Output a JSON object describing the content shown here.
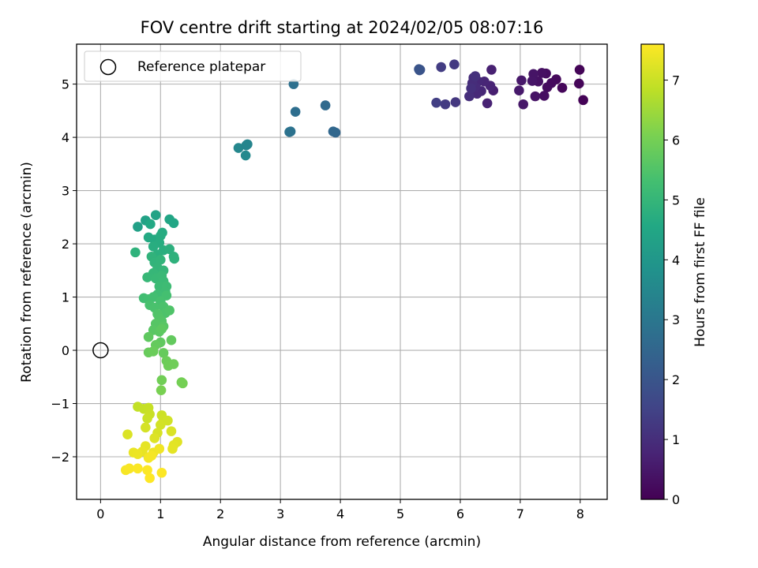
{
  "chart_data": {
    "type": "scatter",
    "title": "FOV centre drift starting at 2024/02/05 08:07:16",
    "xlabel": "Angular distance from reference (arcmin)",
    "ylabel": "Rotation from reference (arcmin)",
    "colorbar_label": "Hours from first FF file",
    "colormap": "viridis",
    "xlim": [
      -0.4,
      8.45
    ],
    "ylim": [
      -2.8,
      5.75
    ],
    "clim": [
      0,
      7.6
    ],
    "xticks": [
      0,
      1,
      2,
      3,
      4,
      5,
      6,
      7,
      8
    ],
    "yticks": [
      -2,
      -1,
      0,
      1,
      2,
      3,
      4,
      5
    ],
    "cticks": [
      0,
      1,
      2,
      3,
      4,
      5,
      6,
      7
    ],
    "grid": true,
    "legend": {
      "label": "Reference platepar",
      "placement": "top-left"
    },
    "reference_point": {
      "x": 0,
      "y": 0
    },
    "points": [
      {
        "x": 8.05,
        "y": 4.7,
        "c": 0.05
      },
      {
        "x": 7.99,
        "y": 5.27,
        "c": 0.08
      },
      {
        "x": 7.98,
        "y": 5.01,
        "c": 0.11
      },
      {
        "x": 7.7,
        "y": 4.93,
        "c": 0.14
      },
      {
        "x": 7.6,
        "y": 5.09,
        "c": 0.17
      },
      {
        "x": 7.52,
        "y": 5.02,
        "c": 0.2
      },
      {
        "x": 7.45,
        "y": 4.94,
        "c": 0.23
      },
      {
        "x": 7.43,
        "y": 5.2,
        "c": 0.26
      },
      {
        "x": 7.4,
        "y": 4.78,
        "c": 0.29
      },
      {
        "x": 7.36,
        "y": 5.21,
        "c": 0.32
      },
      {
        "x": 7.3,
        "y": 5.05,
        "c": 0.35
      },
      {
        "x": 7.25,
        "y": 4.77,
        "c": 0.38
      },
      {
        "x": 7.22,
        "y": 5.19,
        "c": 0.41
      },
      {
        "x": 7.2,
        "y": 5.06,
        "c": 0.44
      },
      {
        "x": 7.05,
        "y": 4.62,
        "c": 0.47
      },
      {
        "x": 7.02,
        "y": 5.07,
        "c": 0.5
      },
      {
        "x": 6.98,
        "y": 4.88,
        "c": 0.53
      },
      {
        "x": 6.55,
        "y": 4.88,
        "c": 0.65
      },
      {
        "x": 6.52,
        "y": 5.27,
        "c": 0.7
      },
      {
        "x": 6.45,
        "y": 4.64,
        "c": 0.74
      },
      {
        "x": 6.5,
        "y": 4.97,
        "c": 0.77
      },
      {
        "x": 6.4,
        "y": 5.05,
        "c": 0.8
      },
      {
        "x": 6.35,
        "y": 4.87,
        "c": 0.83
      },
      {
        "x": 6.3,
        "y": 5.05,
        "c": 0.86
      },
      {
        "x": 6.28,
        "y": 4.82,
        "c": 0.89
      },
      {
        "x": 6.25,
        "y": 4.95,
        "c": 0.92
      },
      {
        "x": 6.22,
        "y": 5.12,
        "c": 0.95
      },
      {
        "x": 6.2,
        "y": 5.02,
        "c": 0.98
      },
      {
        "x": 6.15,
        "y": 4.77,
        "c": 1.01
      },
      {
        "x": 6.18,
        "y": 4.92,
        "c": 1.04
      },
      {
        "x": 6.25,
        "y": 5.15,
        "c": 1.07
      },
      {
        "x": 5.92,
        "y": 4.66,
        "c": 1.2
      },
      {
        "x": 5.9,
        "y": 5.37,
        "c": 1.25
      },
      {
        "x": 5.75,
        "y": 4.62,
        "c": 1.3
      },
      {
        "x": 5.68,
        "y": 5.32,
        "c": 1.35
      },
      {
        "x": 5.6,
        "y": 4.65,
        "c": 1.4
      },
      {
        "x": 5.33,
        "y": 5.27,
        "c": 1.9
      },
      {
        "x": 5.32,
        "y": 5.26,
        "c": 1.93
      },
      {
        "x": 5.31,
        "y": 5.28,
        "c": 1.96
      },
      {
        "x": 3.92,
        "y": 4.09,
        "c": 2.5
      },
      {
        "x": 3.88,
        "y": 4.11,
        "c": 2.53
      },
      {
        "x": 3.75,
        "y": 4.6,
        "c": 2.6
      },
      {
        "x": 3.25,
        "y": 4.48,
        "c": 2.75
      },
      {
        "x": 3.22,
        "y": 5.0,
        "c": 2.8
      },
      {
        "x": 3.15,
        "y": 4.1,
        "c": 2.85
      },
      {
        "x": 3.17,
        "y": 4.11,
        "c": 2.87
      },
      {
        "x": 2.45,
        "y": 3.87,
        "c": 3.4
      },
      {
        "x": 2.3,
        "y": 3.8,
        "c": 3.5
      },
      {
        "x": 2.42,
        "y": 3.66,
        "c": 3.55
      },
      {
        "x": 2.43,
        "y": 3.85,
        "c": 3.45
      },
      {
        "x": 0.62,
        "y": 2.32,
        "c": 4.3
      },
      {
        "x": 0.75,
        "y": 2.44,
        "c": 4.35
      },
      {
        "x": 0.92,
        "y": 2.54,
        "c": 4.4
      },
      {
        "x": 1.15,
        "y": 2.46,
        "c": 4.45
      },
      {
        "x": 1.22,
        "y": 2.39,
        "c": 4.5
      },
      {
        "x": 0.83,
        "y": 2.37,
        "c": 4.55
      },
      {
        "x": 0.8,
        "y": 2.12,
        "c": 4.6
      },
      {
        "x": 0.9,
        "y": 2.08,
        "c": 4.62
      },
      {
        "x": 1.03,
        "y": 2.21,
        "c": 4.65
      },
      {
        "x": 1.0,
        "y": 2.15,
        "c": 4.68
      },
      {
        "x": 0.98,
        "y": 2.02,
        "c": 4.7
      },
      {
        "x": 0.88,
        "y": 1.95,
        "c": 4.72
      },
      {
        "x": 1.05,
        "y": 1.88,
        "c": 4.75
      },
      {
        "x": 0.95,
        "y": 1.8,
        "c": 4.78
      },
      {
        "x": 1.15,
        "y": 1.9,
        "c": 4.8
      },
      {
        "x": 1.22,
        "y": 1.76,
        "c": 4.82
      },
      {
        "x": 1.23,
        "y": 1.72,
        "c": 4.85
      },
      {
        "x": 0.58,
        "y": 1.84,
        "c": 4.88
      },
      {
        "x": 0.85,
        "y": 1.76,
        "c": 4.9
      },
      {
        "x": 0.9,
        "y": 1.65,
        "c": 4.92
      },
      {
        "x": 1.0,
        "y": 1.7,
        "c": 4.95
      },
      {
        "x": 0.95,
        "y": 1.55,
        "c": 4.97
      },
      {
        "x": 1.05,
        "y": 1.5,
        "c": 5.0
      },
      {
        "x": 0.88,
        "y": 1.45,
        "c": 5.02
      },
      {
        "x": 0.78,
        "y": 1.37,
        "c": 5.05
      },
      {
        "x": 0.92,
        "y": 1.35,
        "c": 5.08
      },
      {
        "x": 1.02,
        "y": 1.4,
        "c": 5.1
      },
      {
        "x": 1.05,
        "y": 1.3,
        "c": 5.12
      },
      {
        "x": 0.98,
        "y": 1.2,
        "c": 5.15
      },
      {
        "x": 1.1,
        "y": 1.2,
        "c": 5.18
      },
      {
        "x": 1.08,
        "y": 1.1,
        "c": 5.2
      },
      {
        "x": 0.95,
        "y": 1.05,
        "c": 5.22
      },
      {
        "x": 0.72,
        "y": 0.98,
        "c": 5.25
      },
      {
        "x": 0.8,
        "y": 0.96,
        "c": 5.28
      },
      {
        "x": 0.88,
        "y": 1.0,
        "c": 5.3
      },
      {
        "x": 1.1,
        "y": 1.03,
        "c": 5.32
      },
      {
        "x": 1.0,
        "y": 0.92,
        "c": 5.35
      },
      {
        "x": 0.82,
        "y": 0.85,
        "c": 5.38
      },
      {
        "x": 0.9,
        "y": 0.8,
        "c": 5.4
      },
      {
        "x": 1.05,
        "y": 0.82,
        "c": 5.42
      },
      {
        "x": 1.08,
        "y": 0.7,
        "c": 5.45
      },
      {
        "x": 1.15,
        "y": 0.75,
        "c": 5.48
      },
      {
        "x": 0.95,
        "y": 0.68,
        "c": 5.5
      },
      {
        "x": 0.98,
        "y": 0.6,
        "c": 5.52
      },
      {
        "x": 1.02,
        "y": 0.55,
        "c": 5.55
      },
      {
        "x": 0.92,
        "y": 0.5,
        "c": 5.58
      },
      {
        "x": 1.05,
        "y": 0.45,
        "c": 5.6
      },
      {
        "x": 0.88,
        "y": 0.38,
        "c": 5.62
      },
      {
        "x": 0.98,
        "y": 0.35,
        "c": 5.65
      },
      {
        "x": 1.02,
        "y": 0.4,
        "c": 5.68
      },
      {
        "x": 0.8,
        "y": 0.25,
        "c": 5.7
      },
      {
        "x": 1.0,
        "y": 0.15,
        "c": 5.72
      },
      {
        "x": 1.18,
        "y": 0.19,
        "c": 5.75
      },
      {
        "x": 0.92,
        "y": 0.1,
        "c": 5.78
      },
      {
        "x": 1.05,
        "y": -0.05,
        "c": 5.8
      },
      {
        "x": 0.8,
        "y": -0.04,
        "c": 5.82
      },
      {
        "x": 0.88,
        "y": -0.02,
        "c": 5.85
      },
      {
        "x": 1.1,
        "y": -0.2,
        "c": 5.88
      },
      {
        "x": 1.13,
        "y": -0.29,
        "c": 5.9
      },
      {
        "x": 1.22,
        "y": -0.26,
        "c": 5.92
      },
      {
        "x": 1.02,
        "y": -0.56,
        "c": 5.95
      },
      {
        "x": 1.35,
        "y": -0.6,
        "c": 5.98
      },
      {
        "x": 1.37,
        "y": -0.62,
        "c": 6.0
      },
      {
        "x": 1.01,
        "y": -0.75,
        "c": 6.05
      },
      {
        "x": 0.62,
        "y": -1.06,
        "c": 6.9
      },
      {
        "x": 0.72,
        "y": -1.1,
        "c": 6.92
      },
      {
        "x": 0.8,
        "y": -1.08,
        "c": 6.95
      },
      {
        "x": 0.82,
        "y": -1.2,
        "c": 6.98
      },
      {
        "x": 0.78,
        "y": -1.28,
        "c": 7.0
      },
      {
        "x": 1.02,
        "y": -1.22,
        "c": 7.02
      },
      {
        "x": 1.05,
        "y": -1.3,
        "c": 7.05
      },
      {
        "x": 1.12,
        "y": -1.32,
        "c": 7.08
      },
      {
        "x": 1.0,
        "y": -1.4,
        "c": 7.1
      },
      {
        "x": 0.75,
        "y": -1.45,
        "c": 7.12
      },
      {
        "x": 0.95,
        "y": -1.55,
        "c": 7.15
      },
      {
        "x": 1.18,
        "y": -1.52,
        "c": 7.18
      },
      {
        "x": 0.45,
        "y": -1.58,
        "c": 7.2
      },
      {
        "x": 0.9,
        "y": -1.65,
        "c": 7.22
      },
      {
        "x": 1.28,
        "y": -1.72,
        "c": 7.25
      },
      {
        "x": 1.22,
        "y": -1.78,
        "c": 7.28
      },
      {
        "x": 1.2,
        "y": -1.85,
        "c": 7.3
      },
      {
        "x": 0.75,
        "y": -1.8,
        "c": 7.32
      },
      {
        "x": 0.7,
        "y": -1.9,
        "c": 7.35
      },
      {
        "x": 0.55,
        "y": -1.92,
        "c": 7.38
      },
      {
        "x": 0.62,
        "y": -1.95,
        "c": 7.4
      },
      {
        "x": 0.88,
        "y": -1.92,
        "c": 7.42
      },
      {
        "x": 0.98,
        "y": -1.85,
        "c": 7.45
      },
      {
        "x": 0.8,
        "y": -2.02,
        "c": 7.48
      },
      {
        "x": 0.85,
        "y": -1.98,
        "c": 7.5
      },
      {
        "x": 0.42,
        "y": -2.25,
        "c": 7.52
      },
      {
        "x": 0.48,
        "y": -2.22,
        "c": 7.54
      },
      {
        "x": 0.62,
        "y": -2.22,
        "c": 7.56
      },
      {
        "x": 0.78,
        "y": -2.25,
        "c": 7.58
      },
      {
        "x": 1.02,
        "y": -2.3,
        "c": 7.59
      },
      {
        "x": 0.82,
        "y": -2.4,
        "c": 7.6
      }
    ]
  }
}
